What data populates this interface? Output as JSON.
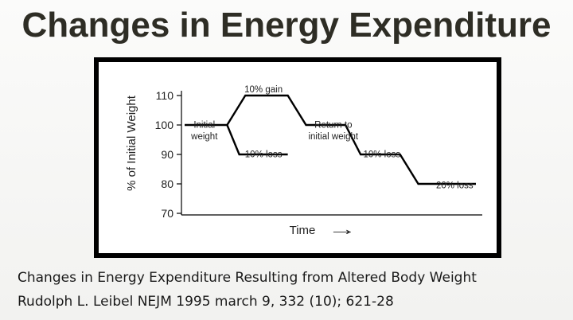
{
  "slide": {
    "title": "Changes in Energy Expenditure",
    "caption_line1": "Changes in Energy Expenditure Resulting from Altered Body Weight",
    "caption_line2": "Rudolph L. Leibel NEJM 1995 march 9, 332 (10); 621-28"
  },
  "chart_data": {
    "type": "line",
    "title": "",
    "xlabel": "Time",
    "xlabel_arrow": "→",
    "ylabel": "% of Initial Weight",
    "ylim": [
      70,
      110
    ],
    "yticks": [
      110,
      100,
      90,
      80,
      70
    ],
    "grid": false,
    "series": [
      {
        "points": [
          [
            0,
            100
          ],
          [
            1.4,
            100
          ],
          [
            2.0,
            110
          ],
          [
            3.4,
            110
          ],
          [
            4.0,
            100
          ],
          [
            5.3,
            100
          ],
          [
            5.8,
            90
          ],
          [
            7.1,
            90
          ],
          [
            7.7,
            80
          ],
          [
            9.6,
            80
          ]
        ]
      },
      {
        "points": [
          [
            1.4,
            100
          ],
          [
            1.8,
            90
          ],
          [
            3.4,
            90
          ]
        ]
      }
    ],
    "xlim": [
      0,
      9.6
    ],
    "annotations": [
      {
        "text": "10% gain",
        "x": 2.6,
        "y": 110
      },
      {
        "text": "Initial",
        "x": 0.65,
        "y": 98
      },
      {
        "text": "weight",
        "x": 0.65,
        "y": 94
      },
      {
        "text": "10% loss",
        "x": 2.6,
        "y": 88
      },
      {
        "text": "Return to",
        "x": 4.9,
        "y": 98
      },
      {
        "text": "initial weight",
        "x": 4.9,
        "y": 94
      },
      {
        "text": "10% loss",
        "x": 6.5,
        "y": 88
      },
      {
        "text": "20% loss",
        "x": 8.9,
        "y": 77.5
      }
    ]
  }
}
